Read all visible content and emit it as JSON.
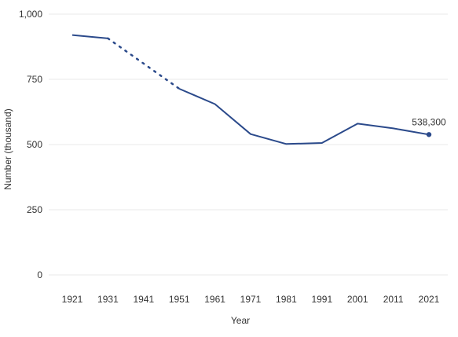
{
  "chart_data": {
    "type": "line",
    "title": "",
    "xlabel": "Year",
    "ylabel": "Number (thousand)",
    "ylim": [
      0,
      1000
    ],
    "yticks": [
      0,
      250,
      500,
      750,
      1000
    ],
    "ytick_labels": [
      "0",
      "250",
      "500",
      "750",
      "1,000"
    ],
    "grid": true,
    "x": [
      1921,
      1931,
      1941,
      1951,
      1961,
      1971,
      1981,
      1991,
      2001,
      2011,
      2021
    ],
    "x_labels": [
      "1921",
      "1931",
      "1941",
      "1951",
      "1961",
      "1971",
      "1981",
      "1991",
      "2001",
      "2011",
      "2021"
    ],
    "series": [
      {
        "values": [
          920,
          907,
          null,
          714,
          655,
          540,
          502,
          506,
          580,
          562,
          538.3
        ],
        "color": "#2b4a8b",
        "gap_style": "dotted"
      }
    ],
    "annotations": [
      {
        "x": 2021,
        "y": 538.3,
        "text": "538,300"
      }
    ]
  }
}
